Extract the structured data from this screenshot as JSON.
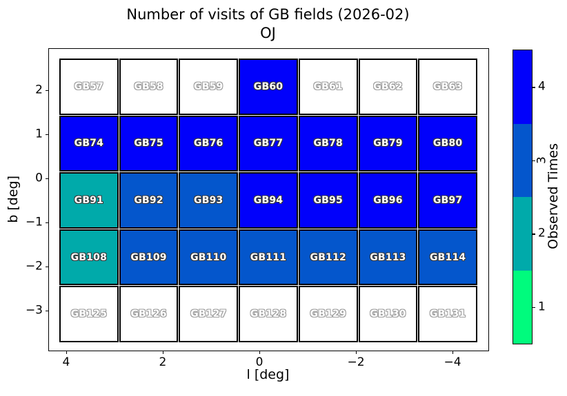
{
  "title": "Number of visits of GB fields (2026-02)",
  "subtitle": "OJ",
  "chart_data": {
    "type": "heatmap",
    "title": "Number of visits of GB fields (2026-02)",
    "subtitle": "OJ",
    "xlabel": "l [deg]",
    "ylabel": "b [deg]",
    "x_axis_reversed": true,
    "x_ticks": [
      "4",
      "2",
      "0",
      "−2",
      "−4"
    ],
    "y_ticks": [
      "2",
      "1",
      "0",
      "−1",
      "−2",
      "−3"
    ],
    "grid_shape": {
      "rows": 5,
      "cols": 7
    },
    "value_colors": {
      "0": "#ffffff",
      "1": "#00fb7d",
      "2": "#00aaaa",
      "3": "#0456cc",
      "4": "#0101fb"
    },
    "rows": [
      [
        {
          "name": "GB57",
          "visits": 0
        },
        {
          "name": "GB58",
          "visits": 0
        },
        {
          "name": "GB59",
          "visits": 0
        },
        {
          "name": "GB60",
          "visits": 4
        },
        {
          "name": "GB61",
          "visits": 0
        },
        {
          "name": "GB62",
          "visits": 0
        },
        {
          "name": "GB63",
          "visits": 0
        }
      ],
      [
        {
          "name": "GB74",
          "visits": 4
        },
        {
          "name": "GB75",
          "visits": 4
        },
        {
          "name": "GB76",
          "visits": 4
        },
        {
          "name": "GB77",
          "visits": 4
        },
        {
          "name": "GB78",
          "visits": 4
        },
        {
          "name": "GB79",
          "visits": 4
        },
        {
          "name": "GB80",
          "visits": 4
        }
      ],
      [
        {
          "name": "GB91",
          "visits": 2
        },
        {
          "name": "GB92",
          "visits": 3
        },
        {
          "name": "GB93",
          "visits": 3
        },
        {
          "name": "GB94",
          "visits": 4
        },
        {
          "name": "GB95",
          "visits": 4
        },
        {
          "name": "GB96",
          "visits": 4
        },
        {
          "name": "GB97",
          "visits": 4
        }
      ],
      [
        {
          "name": "GB108",
          "visits": 2
        },
        {
          "name": "GB109",
          "visits": 3
        },
        {
          "name": "GB110",
          "visits": 3
        },
        {
          "name": "GB111",
          "visits": 3
        },
        {
          "name": "GB112",
          "visits": 3
        },
        {
          "name": "GB113",
          "visits": 3
        },
        {
          "name": "GB114",
          "visits": 3
        }
      ],
      [
        {
          "name": "GB125",
          "visits": 0
        },
        {
          "name": "GB126",
          "visits": 0
        },
        {
          "name": "GB127",
          "visits": 0
        },
        {
          "name": "GB128",
          "visits": 0
        },
        {
          "name": "GB129",
          "visits": 0
        },
        {
          "name": "GB130",
          "visits": 0
        },
        {
          "name": "GB131",
          "visits": 0
        }
      ]
    ],
    "colorbar": {
      "label": "Observed Times",
      "ticks_top_to_bottom": [
        "4",
        "3",
        "2",
        "1"
      ],
      "rotated_ticks": [
        "3"
      ],
      "segment_colors_top_to_bottom": [
        "#0101fb",
        "#0456cc",
        "#00aaaa",
        "#00fb7d"
      ]
    }
  }
}
